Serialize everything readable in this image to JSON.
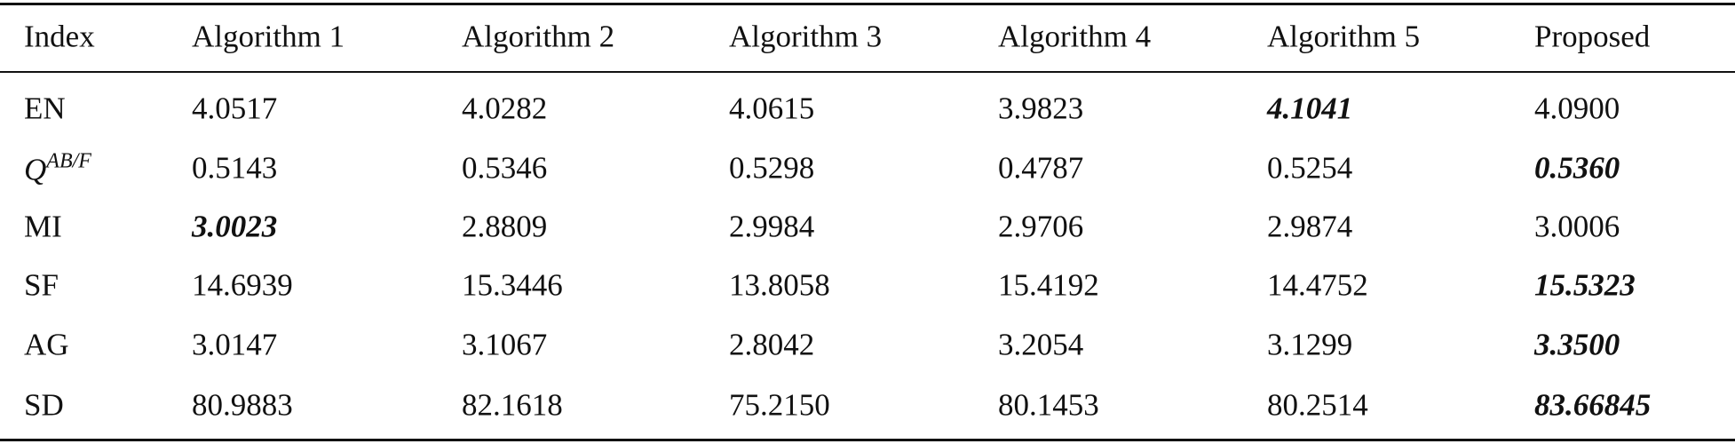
{
  "table": {
    "header": [
      "Index",
      "Algorithm 1",
      "Algorithm 2",
      "Algorithm 3",
      "Algorithm 4",
      "Algorithm 5",
      "Proposed"
    ],
    "rows": [
      {
        "label": "EN",
        "values": [
          "4.0517",
          "4.0282",
          "4.0615",
          "3.9823",
          "4.1041",
          "4.0900"
        ],
        "best": 4
      },
      {
        "label": {
          "base": "Q",
          "sup": "AB/F"
        },
        "values": [
          "0.5143",
          "0.5346",
          "0.5298",
          "0.4787",
          "0.5254",
          "0.5360"
        ],
        "best": 5
      },
      {
        "label": "MI",
        "values": [
          "3.0023",
          "2.8809",
          "2.9984",
          "2.9706",
          "2.9874",
          "3.0006"
        ],
        "best": 0
      },
      {
        "label": "SF",
        "values": [
          "14.6939",
          "15.3446",
          "13.8058",
          "15.4192",
          "14.4752",
          "15.5323"
        ],
        "best": 5
      },
      {
        "label": "AG",
        "values": [
          "3.0147",
          "3.1067",
          "2.8042",
          "3.2054",
          "3.1299",
          "3.3500"
        ],
        "best": 5
      },
      {
        "label": "SD",
        "values": [
          "80.9883",
          "82.1618",
          "75.2150",
          "80.1453",
          "80.2514",
          "83.66845"
        ],
        "best": 5
      }
    ]
  }
}
